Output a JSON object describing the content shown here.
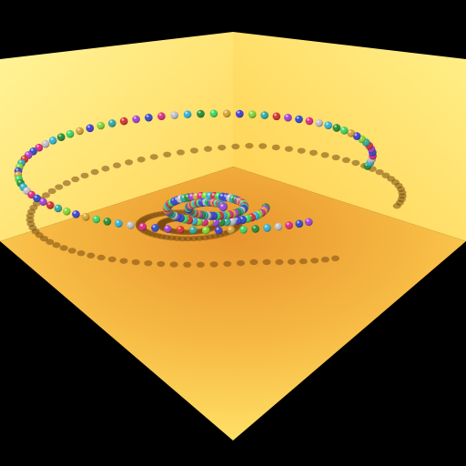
{
  "scene": {
    "background_color": "#000000",
    "wall_light": "#fff07a",
    "wall_mid": "#ffdc5c",
    "floor_near": "#ffd04a",
    "floor_far": "#e99a2f",
    "shadow_color": "#7a4a10",
    "sphere_palette": [
      "#1f8a2a",
      "#2bb2d6",
      "#c0c0c0",
      "#e0247c",
      "#2a46c8",
      "#a33ad6",
      "#d62a2a",
      "#2aa8a0",
      "#7fd62a",
      "#3a3ad6",
      "#d6a22a",
      "#38d65a"
    ],
    "spiral": {
      "outer_turns": 1,
      "inner_turns": 2
    }
  }
}
